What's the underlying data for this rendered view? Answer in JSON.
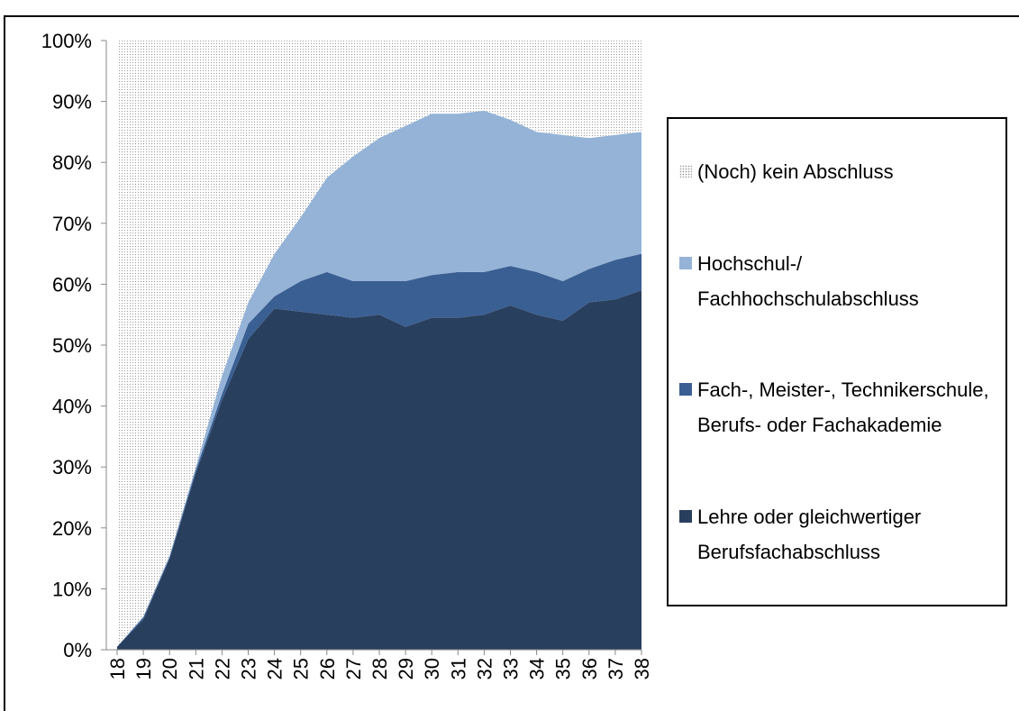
{
  "chart_data": {
    "type": "stacked_area",
    "categories": [
      "18",
      "19",
      "20",
      "21",
      "22",
      "23",
      "24",
      "25",
      "26",
      "27",
      "28",
      "29",
      "30",
      "31",
      "32",
      "33",
      "34",
      "35",
      "36",
      "37",
      "38"
    ],
    "series": [
      {
        "name": "Lehre oder gleichwertiger Berufsfachabschluss",
        "color": "#293f5e",
        "values": [
          0.5,
          5,
          15,
          29,
          41,
          51,
          56,
          55.5,
          55,
          54.5,
          55,
          53,
          54.5,
          54.5,
          55,
          56.5,
          55,
          54,
          57,
          57.5,
          59
        ]
      },
      {
        "name": "Fach-, Meister-, Technikerschule, Berufs- oder Fachakademie",
        "color": "#3a5f92",
        "values": [
          0,
          0.3,
          0.2,
          0.5,
          1,
          2.5,
          2,
          5,
          7,
          6,
          5.5,
          7.5,
          7,
          7.5,
          7,
          6.5,
          7,
          6.5,
          5.5,
          6.5,
          6
        ]
      },
      {
        "name": "Hochschul-/ Fachhochschulabschluss",
        "color": "#95b3d7",
        "values": [
          0,
          0.2,
          0.3,
          0.5,
          3,
          3.5,
          7,
          10.5,
          15.5,
          20.5,
          23.5,
          25.5,
          26.5,
          26,
          26.5,
          24,
          23,
          24,
          21.5,
          20.5,
          20
        ]
      },
      {
        "name": "(Noch) kein Abschluss",
        "color": "#9a9a9a",
        "pattern": "dots",
        "values": [
          99.5,
          94.5,
          84.5,
          70,
          55,
          43,
          35,
          29,
          22.5,
          19,
          16,
          14,
          12,
          12,
          11.5,
          13,
          15,
          15.5,
          16,
          15.5,
          15
        ]
      }
    ],
    "legend_order": [
      3,
      2,
      1,
      0
    ],
    "ylim": [
      0,
      100
    ],
    "yticks": [
      {
        "value": 0,
        "label": "0%"
      },
      {
        "value": 10,
        "label": "10%"
      },
      {
        "value": 20,
        "label": "20%"
      },
      {
        "value": 30,
        "label": "30%"
      },
      {
        "value": 40,
        "label": "40%"
      },
      {
        "value": 50,
        "label": "50%"
      },
      {
        "value": 60,
        "label": "60%"
      },
      {
        "value": 70,
        "label": "70%"
      },
      {
        "value": 80,
        "label": "80%"
      },
      {
        "value": 90,
        "label": "90%"
      },
      {
        "value": 100,
        "label": "100%"
      }
    ],
    "grid": false
  }
}
